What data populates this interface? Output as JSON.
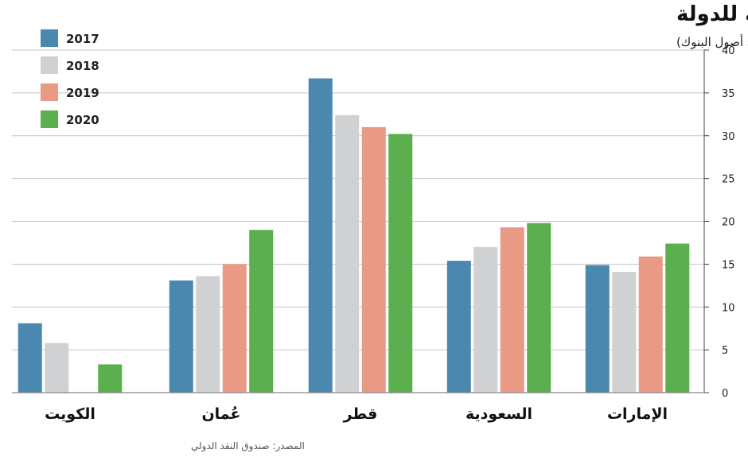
{
  "chart_data": {
    "type": "bar",
    "title": "المطلوبات على الحكومة والشركات المملوكة للدولة",
    "subtitle": "(النسبة المئوية من إجمالي أصول البنوك)",
    "source": "المصدر: صندوق النقد الدولي",
    "categories": [
      "الكويت",
      "عُمان",
      "قطر",
      "السعودية",
      "الإمارات"
    ],
    "series": [
      {
        "name": "2017",
        "color": "#4b88b0",
        "values": [
          8.1,
          13.1,
          36.7,
          15.4,
          14.9
        ]
      },
      {
        "name": "2018",
        "color": "#cfd1d3",
        "values": [
          5.8,
          13.6,
          32.4,
          17.0,
          14.1
        ]
      },
      {
        "name": "2019",
        "color": "#e99a85",
        "values": [
          null,
          15.0,
          31.0,
          19.3,
          15.9
        ]
      },
      {
        "name": "2020",
        "color": "#5caf4f",
        "values": [
          3.3,
          19.0,
          30.2,
          19.8,
          17.4
        ]
      }
    ],
    "ylim": [
      0,
      40
    ],
    "yticks": [
      0,
      5,
      10,
      15,
      20,
      25,
      30,
      35,
      40
    ],
    "yaxis_side": "right",
    "grid": true,
    "legend_position": "top-left"
  }
}
